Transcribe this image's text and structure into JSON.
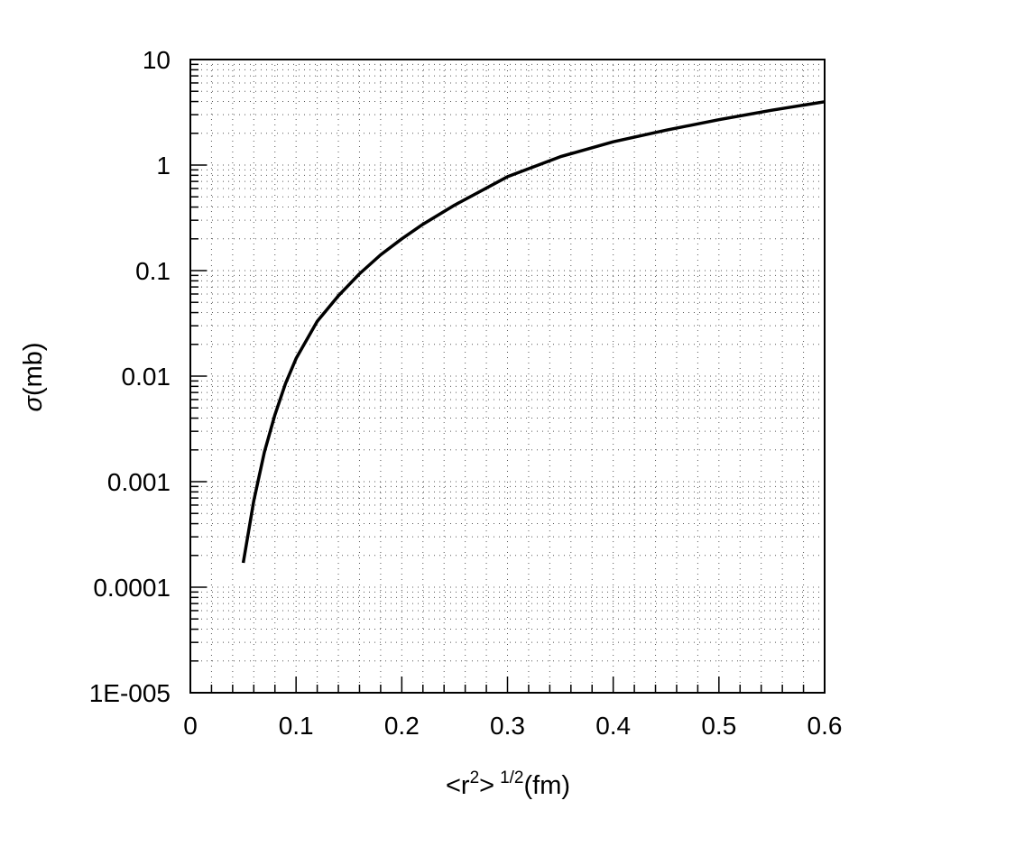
{
  "chart_data": {
    "type": "line",
    "title": "",
    "xlabel": "<r²> ^{1/2}(fm)",
    "xlabel_parts": {
      "open": "<",
      "var": "r",
      "sup": "2",
      "close": ">",
      "exponent": "1/2",
      "unit": "(fm)"
    },
    "ylabel": "σ(mb)",
    "ylabel_parts": {
      "symbol": "σ",
      "unit": "(mb)"
    },
    "xlim": [
      0,
      0.6
    ],
    "ylim": [
      1e-05,
      10
    ],
    "yscale": "log",
    "grid": true,
    "x_ticks": [
      0,
      0.1,
      0.2,
      0.3,
      0.4,
      0.5,
      0.6
    ],
    "x_tick_labels": [
      "0",
      "0.1",
      "0.2",
      "0.3",
      "0.4",
      "0.5",
      "0.6"
    ],
    "y_ticks": [
      1e-05,
      0.0001,
      0.001,
      0.01,
      0.1,
      1,
      10
    ],
    "y_tick_labels": [
      "1E-005",
      "0.0001",
      "0.001",
      "0.01",
      "0.1",
      "1",
      "10"
    ],
    "series": [
      {
        "color": "#000000",
        "x": [
          0.05,
          0.06,
          0.07,
          0.08,
          0.09,
          0.1,
          0.12,
          0.14,
          0.16,
          0.18,
          0.2,
          0.22,
          0.25,
          0.3,
          0.35,
          0.4,
          0.45,
          0.5,
          0.55,
          0.6
        ],
        "y": [
          0.00017,
          0.00066,
          0.0019,
          0.0043,
          0.0085,
          0.0147,
          0.0331,
          0.0576,
          0.0933,
          0.141,
          0.2,
          0.275,
          0.417,
          0.776,
          1.2,
          1.66,
          2.14,
          2.69,
          3.31,
          3.98
        ]
      }
    ]
  }
}
